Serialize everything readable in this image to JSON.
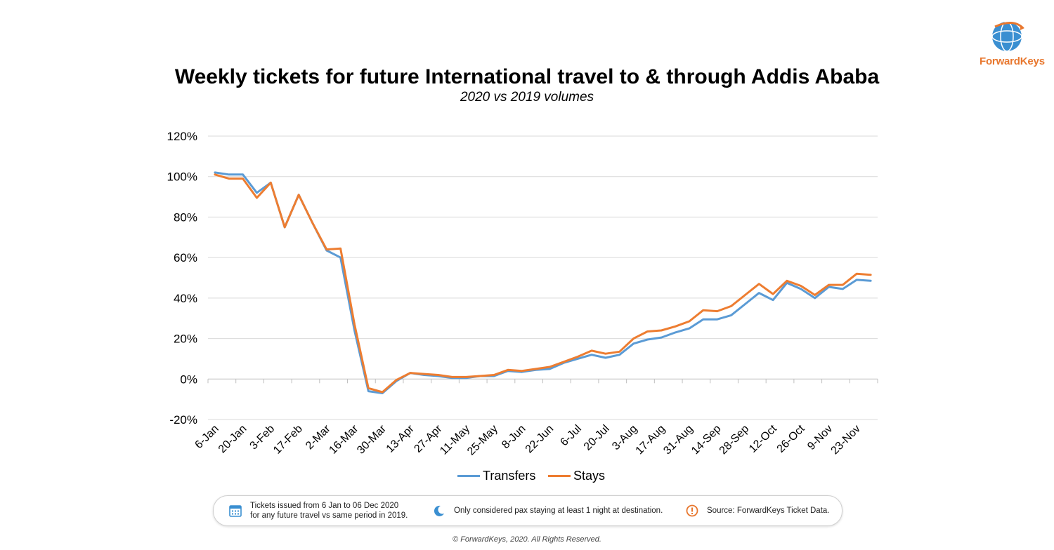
{
  "brand": {
    "name": "ForwardKeys",
    "logo_icon": "globe-icon",
    "colors": {
      "blue": "#3a8fd1",
      "orange": "#e8772e"
    }
  },
  "chart_data": {
    "type": "line",
    "title": "Weekly tickets for future International travel to & through Addis Ababa",
    "subtitle": "2020 vs 2019 volumes",
    "xlabel": "",
    "ylabel": "",
    "ylim": [
      -20,
      120
    ],
    "yticks": [
      "-20%",
      "0%",
      "20%",
      "40%",
      "60%",
      "80%",
      "100%",
      "120%"
    ],
    "grid": true,
    "legend_position": "bottom",
    "tick_labels": [
      "6-Jan",
      "20-Jan",
      "3-Feb",
      "17-Feb",
      "2-Mar",
      "16-Mar",
      "30-Mar",
      "13-Apr",
      "27-Apr",
      "11-May",
      "25-May",
      "8-Jun",
      "22-Jun",
      "6-Jul",
      "20-Jul",
      "3-Aug",
      "17-Aug",
      "31-Aug",
      "14-Sep",
      "28-Sep",
      "12-Oct",
      "26-Oct",
      "9-Nov",
      "23-Nov"
    ],
    "x": [
      "6-Jan",
      "13-Jan",
      "20-Jan",
      "27-Jan",
      "3-Feb",
      "10-Feb",
      "17-Feb",
      "24-Feb",
      "2-Mar",
      "9-Mar",
      "16-Mar",
      "23-Mar",
      "30-Mar",
      "6-Apr",
      "13-Apr",
      "20-Apr",
      "27-Apr",
      "4-May",
      "11-May",
      "18-May",
      "25-May",
      "1-Jun",
      "8-Jun",
      "15-Jun",
      "22-Jun",
      "29-Jun",
      "6-Jul",
      "13-Jul",
      "20-Jul",
      "27-Jul",
      "3-Aug",
      "10-Aug",
      "17-Aug",
      "24-Aug",
      "31-Aug",
      "7-Sep",
      "14-Sep",
      "21-Sep",
      "28-Sep",
      "5-Oct",
      "12-Oct",
      "19-Oct",
      "26-Oct",
      "2-Nov",
      "9-Nov",
      "16-Nov",
      "23-Nov",
      "30-Nov"
    ],
    "series": [
      {
        "name": "Transfers",
        "color": "#5b9bd5",
        "values": [
          102,
          101,
          101,
          92,
          97,
          75,
          91,
          77,
          63.5,
          60,
          24,
          -6,
          -7,
          -1,
          3,
          2,
          1.5,
          0.5,
          0.5,
          1.5,
          1.5,
          4,
          3.5,
          4.5,
          5,
          8,
          10,
          12,
          10.5,
          12,
          17.5,
          19.5,
          20.5,
          23,
          25,
          29.5,
          29.5,
          31.5,
          37,
          42.5,
          39,
          47.5,
          44.5,
          40,
          45.5,
          44.5,
          49,
          48.5
        ]
      },
      {
        "name": "Stays",
        "color": "#ed7d31",
        "values": [
          101,
          99,
          99,
          89.5,
          97,
          75,
          91,
          77,
          64,
          64.5,
          27,
          -4.5,
          -6.5,
          -0.5,
          3,
          2.5,
          2,
          1,
          1,
          1.5,
          2,
          4.5,
          4,
          5,
          6,
          8.5,
          11,
          14,
          12.5,
          13.5,
          20,
          23.5,
          24,
          26,
          28.5,
          34,
          33.5,
          36,
          41.5,
          47,
          42,
          48.5,
          46,
          41.5,
          46.5,
          46.5,
          52,
          51.5
        ]
      }
    ]
  },
  "legend": {
    "transfers": "Transfers",
    "stays": "Stays"
  },
  "notes": [
    {
      "icon": "calendar-icon",
      "text_line1": "Tickets issued from 6 Jan to 06 Dec 2020",
      "text_line2": "for any future travel vs same period in 2019."
    },
    {
      "icon": "moon-icon",
      "text_line1": "Only considered pax staying at least 1 night at destination."
    },
    {
      "icon": "exclamation-icon",
      "text_line1": "Source: ForwardKeys Ticket Data."
    }
  ],
  "copyright": "© ForwardKeys, 2020. All Rights Reserved."
}
